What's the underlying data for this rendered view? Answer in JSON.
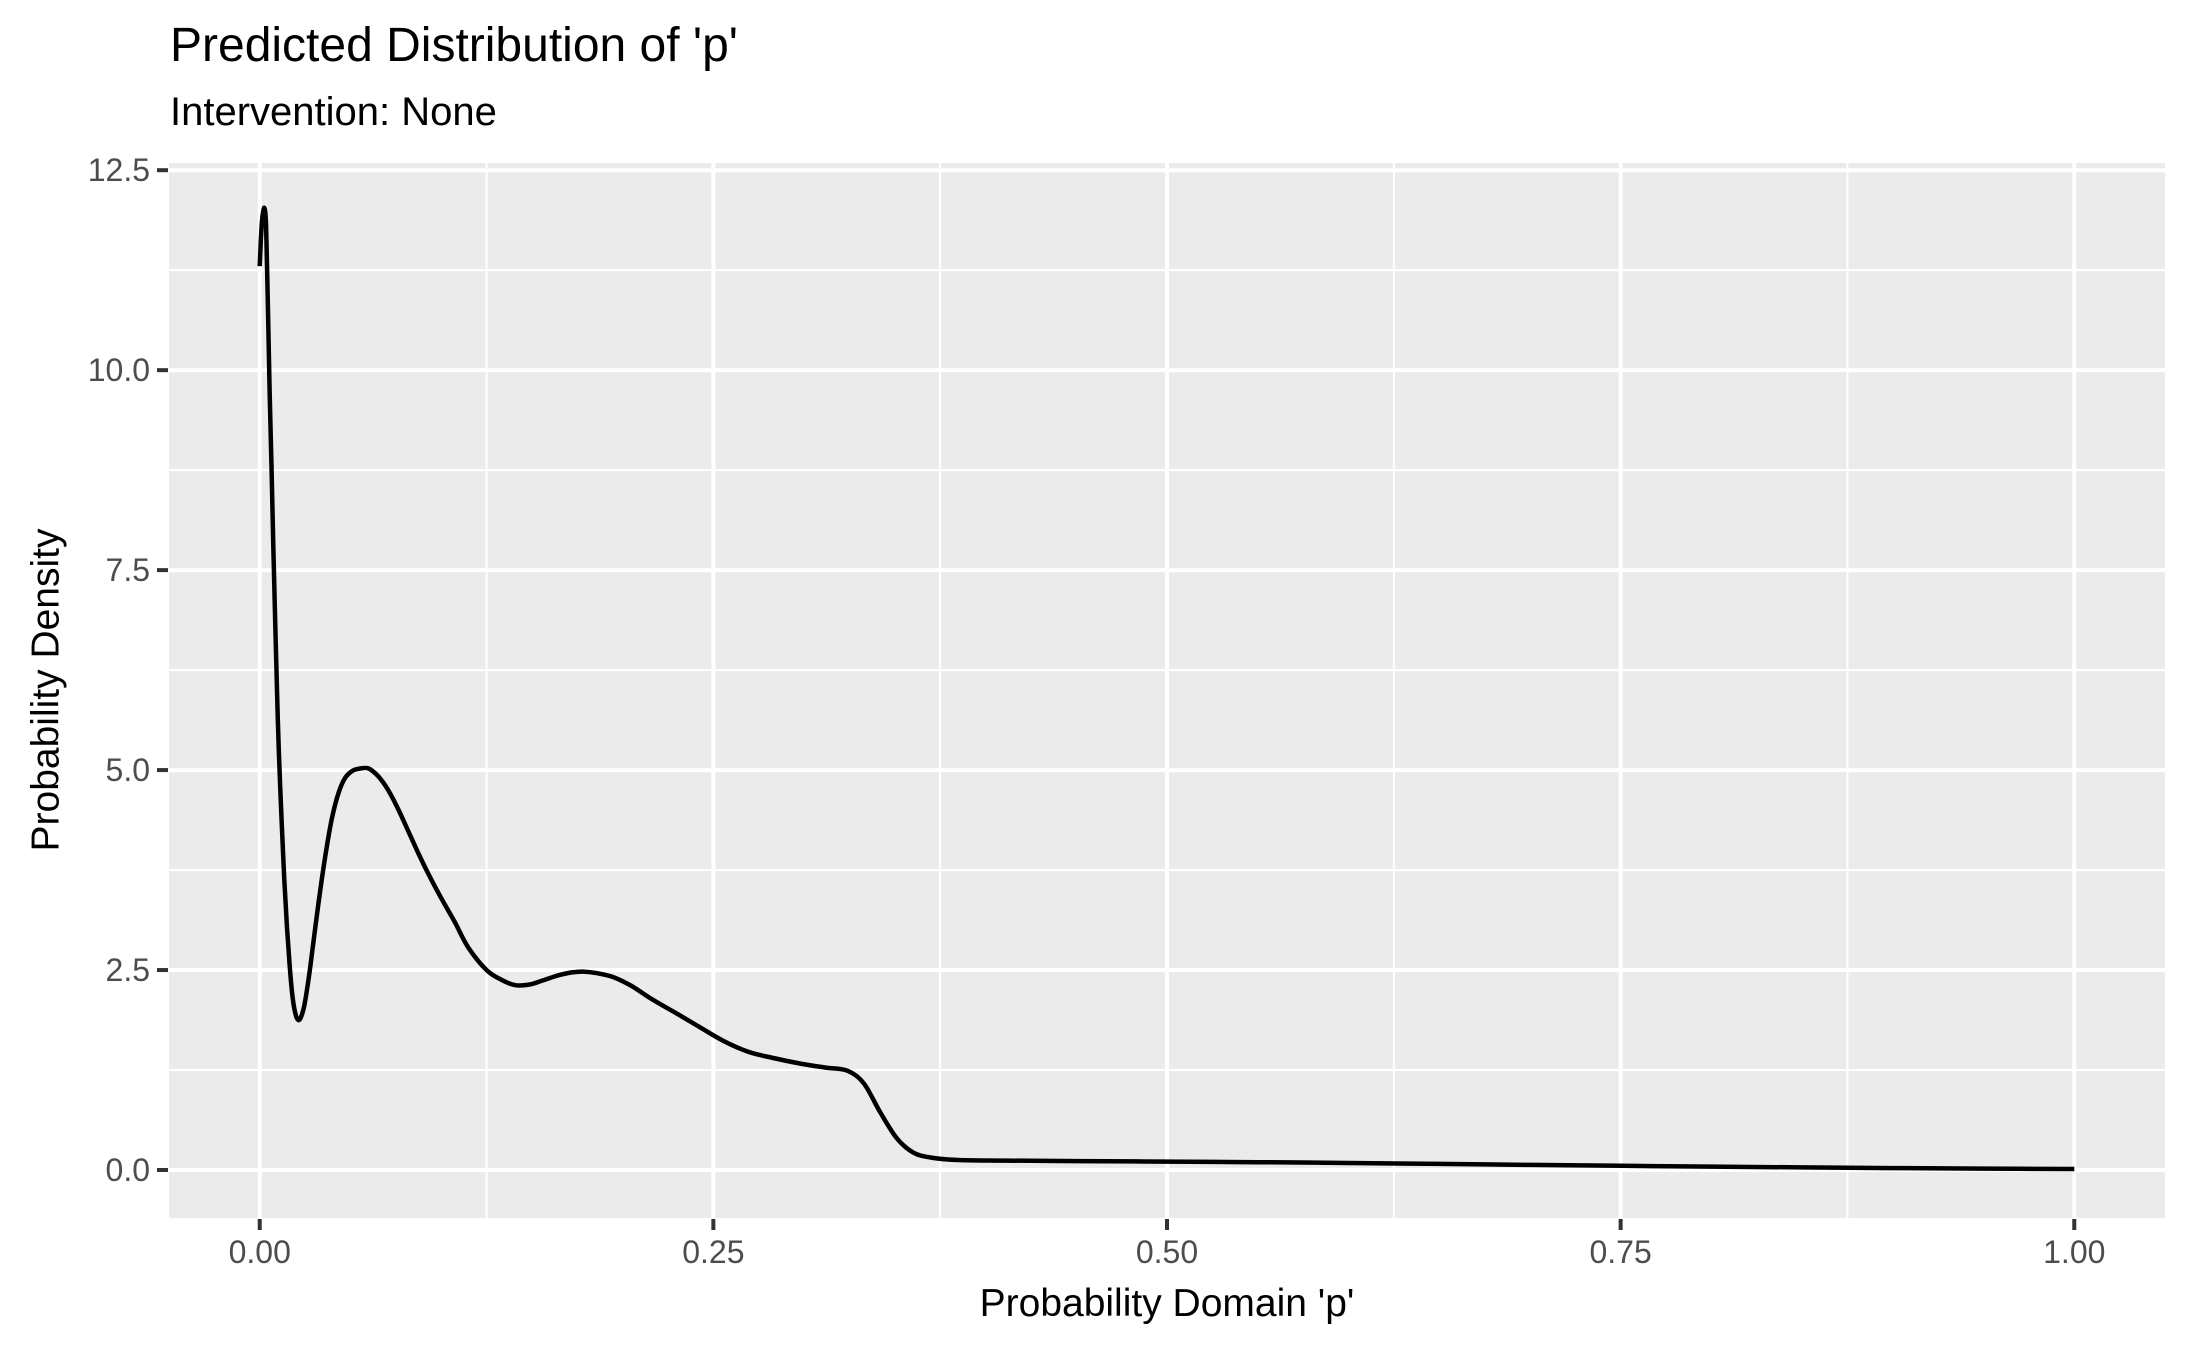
{
  "chart_data": {
    "type": "line",
    "title": "Predicted Distribution of 'p'",
    "subtitle": "Intervention: None",
    "xlabel": "Probability Domain 'p'",
    "ylabel": "Probability Density",
    "xlim": [
      -0.05,
      1.05
    ],
    "ylim": [
      -0.6,
      12.59
    ],
    "x_ticks": {
      "values": [
        0,
        0.25,
        0.5,
        0.75,
        1.0
      ],
      "labels": [
        "0.00",
        "0.25",
        "0.50",
        "0.75",
        "1.00"
      ],
      "minor": [
        0.125,
        0.375,
        0.625,
        0.875
      ]
    },
    "y_ticks": {
      "values": [
        0,
        2.5,
        5,
        7.5,
        10,
        12.5
      ],
      "labels": [
        "0.0",
        "2.5",
        "5.0",
        "7.5",
        "10.0",
        "12.5"
      ],
      "minor": [
        1.25,
        3.75,
        6.25,
        8.75,
        11.25
      ]
    },
    "grid": "major and minor gridlines on, white on grey panel",
    "legend": "none",
    "colors": {
      "panel_background": "#EBEBEB",
      "gridline": "#FFFFFF",
      "line": "#000000",
      "tick_mark": "#333333",
      "tick_label": "#4D4D4D",
      "text": "#000000",
      "page_background": "#FFFFFF"
    },
    "series": [
      {
        "name": "density",
        "points": [
          [
            0.0,
            11.3
          ],
          [
            0.0006,
            11.62
          ],
          [
            0.0012,
            11.85
          ],
          [
            0.0019,
            11.98
          ],
          [
            0.0027,
            12.02
          ],
          [
            0.0035,
            11.8
          ],
          [
            0.0045,
            10.8
          ],
          [
            0.0055,
            9.7
          ],
          [
            0.0065,
            8.8
          ],
          [
            0.0075,
            7.8
          ],
          [
            0.0085,
            6.85
          ],
          [
            0.0095,
            6.0
          ],
          [
            0.0105,
            5.25
          ],
          [
            0.012,
            4.4
          ],
          [
            0.0135,
            3.65
          ],
          [
            0.015,
            3.05
          ],
          [
            0.0165,
            2.55
          ],
          [
            0.018,
            2.18
          ],
          [
            0.0195,
            1.97
          ],
          [
            0.021,
            1.88
          ],
          [
            0.0225,
            1.9
          ],
          [
            0.0245,
            2.05
          ],
          [
            0.0265,
            2.32
          ],
          [
            0.0285,
            2.65
          ],
          [
            0.031,
            3.1
          ],
          [
            0.034,
            3.6
          ],
          [
            0.037,
            4.05
          ],
          [
            0.04,
            4.42
          ],
          [
            0.0435,
            4.72
          ],
          [
            0.047,
            4.9
          ],
          [
            0.051,
            4.99
          ],
          [
            0.0555,
            5.02
          ],
          [
            0.06,
            5.02
          ],
          [
            0.065,
            4.93
          ],
          [
            0.07,
            4.78
          ],
          [
            0.0755,
            4.55
          ],
          [
            0.081,
            4.28
          ],
          [
            0.087,
            3.98
          ],
          [
            0.093,
            3.7
          ],
          [
            0.1,
            3.4
          ],
          [
            0.1075,
            3.1
          ],
          [
            0.115,
            2.78
          ],
          [
            0.125,
            2.5
          ],
          [
            0.133,
            2.38
          ],
          [
            0.141,
            2.31
          ],
          [
            0.149,
            2.32
          ],
          [
            0.156,
            2.37
          ],
          [
            0.164,
            2.43
          ],
          [
            0.172,
            2.47
          ],
          [
            0.178,
            2.48
          ],
          [
            0.186,
            2.46
          ],
          [
            0.195,
            2.41
          ],
          [
            0.205,
            2.3
          ],
          [
            0.2165,
            2.13
          ],
          [
            0.228,
            1.98
          ],
          [
            0.24,
            1.82
          ],
          [
            0.255,
            1.62
          ],
          [
            0.269,
            1.48
          ],
          [
            0.283,
            1.4
          ],
          [
            0.298,
            1.33
          ],
          [
            0.312,
            1.28
          ],
          [
            0.324,
            1.24
          ],
          [
            0.333,
            1.08
          ],
          [
            0.342,
            0.72
          ],
          [
            0.351,
            0.4
          ],
          [
            0.36,
            0.22
          ],
          [
            0.37,
            0.155
          ],
          [
            0.385,
            0.125
          ],
          [
            0.41,
            0.118
          ],
          [
            0.45,
            0.112
          ],
          [
            0.5,
            0.105
          ],
          [
            0.55,
            0.098
          ],
          [
            0.6,
            0.088
          ],
          [
            0.65,
            0.076
          ],
          [
            0.7,
            0.064
          ],
          [
            0.75,
            0.053
          ],
          [
            0.8,
            0.042
          ],
          [
            0.85,
            0.032
          ],
          [
            0.9,
            0.024
          ],
          [
            0.95,
            0.017
          ],
          [
            1.0,
            0.012
          ]
        ]
      }
    ]
  }
}
